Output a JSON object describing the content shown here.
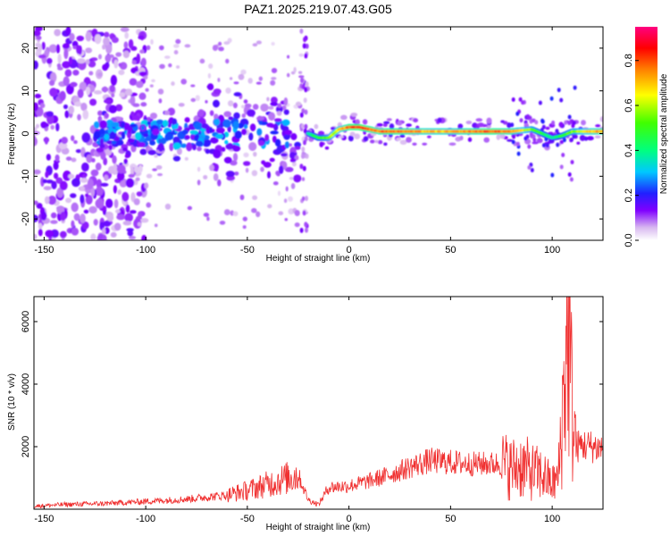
{
  "title": "PAZ1.2025.219.07.43.G05",
  "chart_data": [
    {
      "type": "heatmap",
      "xlabel": "Height of straight line (km)",
      "ylabel": "Frequency (Hz)",
      "xlim": [
        -155,
        125
      ],
      "ylim": [
        -25,
        25
      ],
      "x_ticks": [
        -150,
        -100,
        -50,
        0,
        50,
        100
      ],
      "y_ticks": [
        -20,
        -10,
        0,
        10,
        20
      ],
      "colorbar": {
        "label": "Normalized spectral amplitude",
        "range": [
          0,
          0.95
        ],
        "ticks": [
          0.0,
          0.2,
          0.4,
          0.6,
          0.8
        ],
        "tick_labels": [
          "0.0",
          "0.2",
          "0.4",
          "0.6",
          "0.8"
        ]
      },
      "ridge": {
        "x": [
          -20,
          -15,
          -10,
          -5,
          0,
          5,
          10,
          15,
          20,
          30,
          40,
          50,
          60,
          70,
          80,
          90,
          100,
          105,
          110,
          120,
          125
        ],
        "y": [
          0,
          -1,
          -1,
          1,
          1.5,
          1.5,
          1,
          0.5,
          0.5,
          0.5,
          0.5,
          0.5,
          0.5,
          0.5,
          0.5,
          1,
          -1,
          -0.5,
          0.5,
          0.5,
          0.5
        ],
        "amp": [
          0.4,
          0.5,
          0.6,
          0.7,
          0.85,
          0.9,
          0.85,
          0.8,
          0.85,
          0.8,
          0.75,
          0.75,
          0.8,
          0.85,
          0.8,
          0.6,
          0.4,
          0.5,
          0.6,
          0.75,
          0.8
        ]
      }
    },
    {
      "type": "line",
      "xlabel": "Height of straight line (km)",
      "ylabel": "SNR (10 * v/v)",
      "xlim": [
        -155,
        125
      ],
      "ylim": [
        0,
        6800
      ],
      "x_ticks": [
        -150,
        -100,
        -50,
        0,
        50,
        100
      ],
      "y_ticks": [
        2000,
        4000,
        6000
      ],
      "color": "#f03030",
      "series": [
        {
          "x": [
            -155,
            -140,
            -120,
            -100,
            -80,
            -60,
            -50,
            -40,
            -30,
            -25,
            -20,
            -15,
            -10,
            0,
            10,
            20,
            30,
            40,
            50,
            60,
            70,
            75,
            80,
            85,
            90,
            95,
            100,
            103,
            105,
            107,
            108,
            110,
            112,
            115,
            120,
            125
          ],
          "y": [
            100,
            150,
            180,
            250,
            320,
            450,
            600,
            800,
            1000,
            1100,
            300,
            150,
            700,
            750,
            900,
            1100,
            1350,
            1550,
            1500,
            1450,
            1450,
            1450,
            1300,
            1400,
            1200,
            1100,
            800,
            1000,
            3000,
            5200,
            6000,
            3000,
            2000,
            2050,
            2000,
            1950
          ]
        }
      ]
    }
  ]
}
